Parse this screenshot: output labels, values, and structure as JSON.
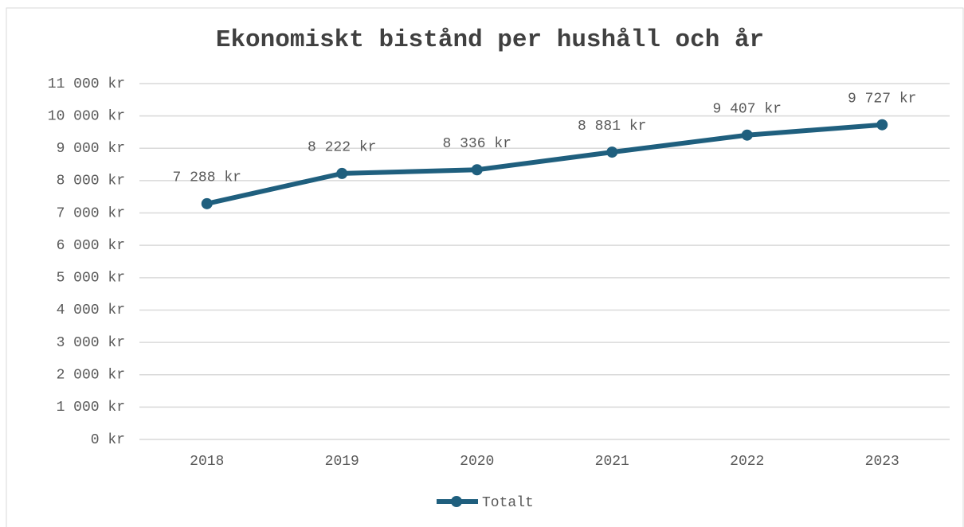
{
  "chart_data": {
    "type": "line",
    "title": "Ekonomiskt bistånd per hushåll och år",
    "categories": [
      "2018",
      "2019",
      "2020",
      "2021",
      "2022",
      "2023"
    ],
    "series": [
      {
        "name": "Totalt",
        "color": "#1f5f7e",
        "values": [
          7288,
          8222,
          8336,
          8881,
          9407,
          9727
        ],
        "value_labels": [
          "7 288 kr",
          "8 222 kr",
          "8 336 kr",
          "8 881 kr",
          "9 407 kr",
          "9 727 kr"
        ]
      }
    ],
    "ylim": [
      0,
      11000
    ],
    "yticks": [
      {
        "value": 0,
        "label": "0 kr"
      },
      {
        "value": 1000,
        "label": "1 000 kr"
      },
      {
        "value": 2000,
        "label": "2 000 kr"
      },
      {
        "value": 3000,
        "label": "3 000 kr"
      },
      {
        "value": 4000,
        "label": "4 000 kr"
      },
      {
        "value": 5000,
        "label": "5 000 kr"
      },
      {
        "value": 6000,
        "label": "6 000 kr"
      },
      {
        "value": 7000,
        "label": "7 000 kr"
      },
      {
        "value": 8000,
        "label": "8 000 kr"
      },
      {
        "value": 9000,
        "label": "9 000 kr"
      },
      {
        "value": 10000,
        "label": "10 000 kr"
      },
      {
        "value": 11000,
        "label": "11 000 kr"
      }
    ],
    "grid": true,
    "legend": "bottom"
  }
}
